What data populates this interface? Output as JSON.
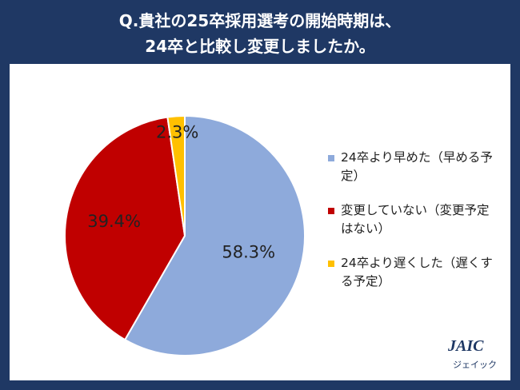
{
  "chart_data": {
    "type": "pie",
    "title": [
      "Q.貴社の25卒採用選考の開始時期は、",
      "24卒と比較し変更しましたか。"
    ],
    "categories": [
      "24卒より早めた（早める予定）",
      "変更していない（変更予定はない）",
      "24卒より遅くした（遅くする予定）"
    ],
    "values": [
      58.3,
      39.4,
      2.3
    ],
    "value_labels": [
      "58.3%",
      "39.4%",
      "2.3%"
    ],
    "colors": [
      "#8eaadb",
      "#c00000",
      "#ffc000"
    ],
    "legend": "right"
  },
  "logo": {
    "name": "JAIC",
    "kana": "ジェイック"
  }
}
